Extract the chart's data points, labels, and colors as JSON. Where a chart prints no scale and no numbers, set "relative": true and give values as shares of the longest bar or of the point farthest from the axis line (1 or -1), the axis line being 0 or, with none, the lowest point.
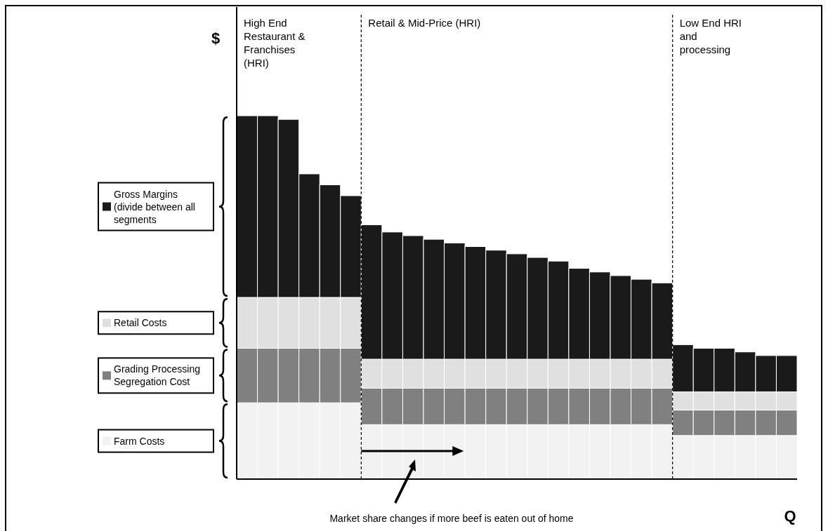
{
  "chart_data": {
    "type": "bar",
    "stacked": true,
    "relative": true,
    "xlabel": "Q",
    "ylabel": "$",
    "legend": "left",
    "categories": [
      null,
      null,
      null,
      null,
      null,
      null,
      null,
      null,
      null,
      null,
      null,
      null,
      null,
      null,
      null,
      null,
      null,
      null,
      null,
      null,
      null,
      null,
      null,
      null,
      null,
      null,
      null
    ],
    "series": [
      {
        "name": "Farm Costs",
        "color": "#f2f2f2",
        "values": [
          0.21,
          0.21,
          0.21,
          0.21,
          0.21,
          0.21,
          0.15,
          0.15,
          0.15,
          0.15,
          0.15,
          0.15,
          0.15,
          0.15,
          0.15,
          0.15,
          0.15,
          0.15,
          0.15,
          0.15,
          0.15,
          0.12,
          0.12,
          0.12,
          0.12,
          0.12,
          0.12
        ]
      },
      {
        "name": "Grading Processing Segregation Cost",
        "color": "#808080",
        "values": [
          0.15,
          0.15,
          0.15,
          0.15,
          0.15,
          0.15,
          0.1,
          0.1,
          0.1,
          0.1,
          0.1,
          0.1,
          0.1,
          0.1,
          0.1,
          0.1,
          0.1,
          0.1,
          0.1,
          0.1,
          0.1,
          0.07,
          0.07,
          0.07,
          0.07,
          0.07,
          0.07
        ]
      },
      {
        "name": "Retail Costs",
        "color": "#e0e0e0",
        "values": [
          0.14,
          0.14,
          0.14,
          0.14,
          0.14,
          0.14,
          0.08,
          0.08,
          0.08,
          0.08,
          0.08,
          0.08,
          0.08,
          0.08,
          0.08,
          0.08,
          0.08,
          0.08,
          0.08,
          0.08,
          0.08,
          0.05,
          0.05,
          0.05,
          0.05,
          0.05,
          0.05
        ]
      },
      {
        "name": "Gross Margins (divide between all segments",
        "color": "#1a1a1a",
        "values": [
          0.5,
          0.5,
          0.49,
          0.34,
          0.31,
          0.28,
          0.37,
          0.35,
          0.34,
          0.33,
          0.32,
          0.31,
          0.3,
          0.29,
          0.28,
          0.27,
          0.25,
          0.24,
          0.23,
          0.22,
          0.21,
          0.13,
          0.12,
          0.12,
          0.11,
          0.1,
          0.1
        ]
      }
    ],
    "annotations": [
      "High End Restaurant & Franchises (HRI)",
      "Retail & Mid-Price (HRI)",
      "Low End HRI and processing",
      "Market share changes if more beef is eaten out of home"
    ]
  }
}
